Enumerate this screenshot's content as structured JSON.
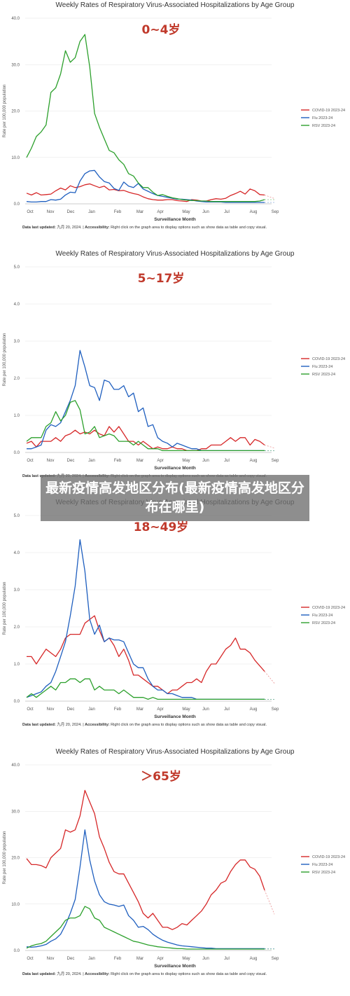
{
  "overlay_text": "最新疫情高发地区分布(最新疫情高发地区分布在哪里)",
  "colors": {
    "covid": "#d62728",
    "flu": "#1f5fbf",
    "rsv": "#2ca02c",
    "age": "#c0392b"
  },
  "footer": {
    "updated_label": "Data last updated:",
    "updated_value": "九月 20, 2024. |",
    "access_label": "Accessibility:",
    "access_text": "Right click on the graph area to display options such as show data as table and copy visual."
  },
  "chart_data": [
    {
      "type": "line",
      "title": "Weekly Rates of Respiratory Virus-Associated Hospitalizations by Age Group",
      "age_label": "0~4岁",
      "xlabel": "Surveillance Month",
      "ylabel": "Rate per 100,000 population",
      "ylim": [
        0,
        40
      ],
      "yticks": [
        "0.0",
        "10.0",
        "20.0",
        "30.0",
        "40.0"
      ],
      "xticks": [
        "Oct",
        "Nov",
        "Dec",
        "Jan",
        "Feb",
        "Mar",
        "Apr",
        "May",
        "Jun",
        "Jul",
        "Aug",
        "Sep"
      ],
      "series": [
        {
          "name": "COVID-19 2023-24",
          "values": [
            2.3,
            1.9,
            2.4,
            1.9,
            2.0,
            2.1,
            2.8,
            3.4,
            3.0,
            3.9,
            3.5,
            3.7,
            4.1,
            4.3,
            3.9,
            3.5,
            3.8,
            3.0,
            3.1,
            2.8,
            2.9,
            2.5,
            2.2,
            2.0,
            1.5,
            1.1,
            0.9,
            0.8,
            0.8,
            0.9,
            0.9,
            0.7,
            0.6,
            0.5,
            0.9,
            0.8,
            0.6,
            0.6,
            0.9,
            1.1,
            1.0,
            1.2,
            1.8,
            2.2,
            2.7,
            2.1,
            3.2,
            2.8,
            2.0,
            1.9
          ]
        },
        {
          "name": "Flu 2023-24",
          "values": [
            0.5,
            0.4,
            0.4,
            0.5,
            0.5,
            0.9,
            0.8,
            1.0,
            1.9,
            2.5,
            2.4,
            4.9,
            6.5,
            7.1,
            7.2,
            5.8,
            4.8,
            4.5,
            3.3,
            2.9,
            4.7,
            3.8,
            3.5,
            4.4,
            3.2,
            2.7,
            2.2,
            1.8,
            1.6,
            1.4,
            1.2,
            1.0,
            1.0,
            0.9,
            0.8,
            0.6,
            0.5,
            0.4,
            0.4,
            0.4,
            0.4,
            0.3,
            0.3,
            0.3,
            0.3,
            0.3,
            0.3,
            0.3,
            0.3,
            0.3
          ]
        },
        {
          "name": "RSV 2023-24",
          "values": [
            10.0,
            12.0,
            14.5,
            15.5,
            17.0,
            24.0,
            25.0,
            28.0,
            33.0,
            30.5,
            31.5,
            35.0,
            36.5,
            29.5,
            19.5,
            16.5,
            14.0,
            11.5,
            11.0,
            9.5,
            8.5,
            6.5,
            6.0,
            4.5,
            3.5,
            3.5,
            2.5,
            1.8,
            2.0,
            1.6,
            1.3,
            1.1,
            0.9,
            0.8,
            0.7,
            0.7,
            0.6,
            0.6,
            0.5,
            0.5,
            0.5,
            0.5,
            0.5,
            0.5,
            0.5,
            0.5,
            0.5,
            0.5,
            0.6,
            0.9
          ]
        }
      ]
    },
    {
      "type": "line",
      "title": "Weekly Rates of Respiratory Virus-Associated Hospitalizations by Age Group",
      "age_label": "5~17岁",
      "xlabel": "Surveillance Month",
      "ylabel": "Rate per 100,000 population",
      "ylim": [
        0,
        5
      ],
      "yticks": [
        "0.0",
        "1.0",
        "2.0",
        "3.0",
        "4.0",
        "5.0"
      ],
      "xticks": [
        "Oct",
        "Nov",
        "Dec",
        "Jan",
        "Feb",
        "Mar",
        "Apr",
        "May",
        "Jun",
        "Jul",
        "Aug",
        "Sep"
      ],
      "series": [
        {
          "name": "COVID-19 2023-24",
          "values": [
            0.25,
            0.3,
            0.15,
            0.3,
            0.3,
            0.3,
            0.4,
            0.3,
            0.45,
            0.5,
            0.6,
            0.5,
            0.55,
            0.5,
            0.6,
            0.5,
            0.45,
            0.7,
            0.55,
            0.7,
            0.5,
            0.3,
            0.3,
            0.2,
            0.3,
            0.2,
            0.1,
            0.15,
            0.1,
            0.1,
            0.15,
            0.1,
            0.1,
            0.05,
            0.05,
            0.05,
            0.1,
            0.1,
            0.2,
            0.2,
            0.2,
            0.3,
            0.4,
            0.3,
            0.4,
            0.4,
            0.2,
            0.35,
            0.3,
            0.2
          ]
        },
        {
          "name": "Flu 2023-24",
          "values": [
            0.1,
            0.1,
            0.15,
            0.2,
            0.6,
            0.75,
            0.7,
            0.8,
            1.1,
            1.4,
            1.8,
            2.75,
            2.3,
            1.8,
            1.75,
            1.4,
            1.95,
            1.9,
            1.7,
            1.7,
            1.8,
            1.5,
            1.6,
            1.1,
            1.2,
            0.7,
            0.75,
            0.4,
            0.3,
            0.25,
            0.15,
            0.25,
            0.2,
            0.15,
            0.1,
            0.1,
            0.05,
            0.05,
            0.05,
            0.05,
            0.05,
            0.05,
            0.05,
            0.05,
            0.05,
            0.05,
            0.05,
            0.05,
            0.05,
            0.05
          ]
        },
        {
          "name": "RSV 2023-24",
          "values": [
            0.3,
            0.4,
            0.4,
            0.4,
            0.7,
            0.8,
            1.1,
            0.85,
            1.0,
            1.35,
            1.4,
            1.15,
            0.5,
            0.55,
            0.7,
            0.4,
            0.45,
            0.5,
            0.45,
            0.3,
            0.3,
            0.3,
            0.2,
            0.3,
            0.2,
            0.1,
            0.1,
            0.1,
            0.05,
            0.05,
            0.05,
            0.05,
            0.05,
            0.05,
            0.05,
            0.05,
            0.05,
            0.05,
            0.05,
            0.05,
            0.05,
            0.05,
            0.05,
            0.05,
            0.05,
            0.05,
            0.05,
            0.05,
            0.05,
            0.05
          ]
        }
      ]
    },
    {
      "type": "line",
      "title": "Weekly Rates of Respiratory Virus-Associated Hospitalizations by Age Group",
      "age_label": "18~49岁",
      "xlabel": "Surveillance Month",
      "ylabel": "Rate per 100,000 population",
      "ylim": [
        0,
        5
      ],
      "yticks": [
        "0.0",
        "1.0",
        "2.0",
        "3.0",
        "4.0",
        "5.0"
      ],
      "xticks": [
        "Oct",
        "Nov",
        "Dec",
        "Jan",
        "Feb",
        "Mar",
        "Apr",
        "May",
        "Jun",
        "Jul",
        "Aug",
        "Sep"
      ],
      "series": [
        {
          "name": "COVID-19 2023-24",
          "values": [
            1.2,
            1.2,
            1.0,
            1.2,
            1.4,
            1.3,
            1.2,
            1.4,
            1.7,
            1.8,
            1.8,
            1.8,
            2.1,
            2.2,
            2.3,
            1.9,
            1.6,
            1.7,
            1.5,
            1.2,
            1.4,
            1.1,
            0.7,
            0.7,
            0.6,
            0.5,
            0.4,
            0.4,
            0.3,
            0.2,
            0.3,
            0.3,
            0.4,
            0.5,
            0.5,
            0.6,
            0.5,
            0.8,
            1.0,
            1.0,
            1.2,
            1.4,
            1.5,
            1.7,
            1.4,
            1.4,
            1.3,
            1.1,
            0.95,
            0.8
          ]
        },
        {
          "name": "Flu 2023-24",
          "values": [
            0.1,
            0.15,
            0.2,
            0.25,
            0.4,
            0.5,
            0.8,
            1.2,
            1.6,
            2.3,
            3.1,
            4.35,
            3.5,
            2.2,
            1.8,
            2.05,
            1.6,
            1.7,
            1.65,
            1.65,
            1.6,
            1.3,
            1.0,
            0.9,
            0.9,
            0.6,
            0.4,
            0.3,
            0.3,
            0.2,
            0.2,
            0.15,
            0.1,
            0.1,
            0.1,
            0.05,
            0.05,
            0.05,
            0.05,
            0.05,
            0.05,
            0.05,
            0.05,
            0.05,
            0.05,
            0.05,
            0.05,
            0.05,
            0.05,
            0.05
          ]
        },
        {
          "name": "RSV 2023-24",
          "values": [
            0.1,
            0.2,
            0.1,
            0.2,
            0.3,
            0.4,
            0.3,
            0.5,
            0.5,
            0.6,
            0.6,
            0.5,
            0.6,
            0.6,
            0.3,
            0.4,
            0.3,
            0.3,
            0.3,
            0.2,
            0.3,
            0.2,
            0.1,
            0.1,
            0.1,
            0.05,
            0.1,
            0.05,
            0.05,
            0.05,
            0.05,
            0.05,
            0.05,
            0.05,
            0.05,
            0.05,
            0.05,
            0.05,
            0.05,
            0.05,
            0.05,
            0.05,
            0.05,
            0.05,
            0.05,
            0.05,
            0.05,
            0.05,
            0.05,
            0.05
          ]
        }
      ]
    },
    {
      "type": "line",
      "title": "Weekly Rates of Respiratory Virus-Associated Hospitalizations by Age Group",
      "age_label": "＞65岁",
      "xlabel": "Surveillance Month",
      "ylabel": "Rate per 100,000 population",
      "ylim": [
        0,
        40
      ],
      "yticks": [
        "0.0",
        "10.0",
        "20.0",
        "30.0",
        "40.0"
      ],
      "xticks": [
        "Oct",
        "Nov",
        "Dec",
        "Jan",
        "Feb",
        "Mar",
        "Apr",
        "May",
        "Jun",
        "Jul",
        "Aug",
        "Sep"
      ],
      "series": [
        {
          "name": "COVID-19 2023-24",
          "values": [
            19.8,
            18.5,
            18.5,
            18.3,
            17.8,
            20.0,
            21.0,
            22.0,
            26.0,
            25.5,
            26.0,
            29.0,
            34.5,
            32.0,
            29.5,
            24.5,
            22.0,
            19.0,
            17.0,
            16.5,
            16.5,
            14.5,
            12.5,
            10.5,
            8.0,
            7.0,
            8.0,
            6.5,
            5.0,
            5.0,
            4.5,
            5.0,
            5.8,
            5.5,
            6.5,
            7.5,
            8.5,
            10.0,
            12.0,
            13.0,
            14.5,
            15.0,
            17.0,
            18.5,
            19.5,
            19.5,
            18.0,
            17.5,
            16.0,
            13.0
          ]
        },
        {
          "name": "Flu 2023-24",
          "values": [
            0.8,
            0.7,
            0.8,
            1.0,
            1.3,
            2.0,
            2.5,
            3.5,
            5.5,
            8.0,
            11.0,
            18.0,
            26.0,
            19.5,
            15.0,
            12.0,
            10.5,
            10.0,
            9.8,
            9.5,
            9.8,
            7.5,
            6.5,
            5.0,
            5.2,
            4.5,
            3.5,
            2.8,
            2.2,
            1.8,
            1.5,
            1.2,
            1.0,
            0.9,
            0.8,
            0.7,
            0.6,
            0.5,
            0.5,
            0.4,
            0.4,
            0.4,
            0.4,
            0.4,
            0.4,
            0.4,
            0.4,
            0.4,
            0.4,
            0.4
          ]
        },
        {
          "name": "RSV 2023-24",
          "values": [
            0.5,
            1.0,
            1.3,
            1.5,
            2.0,
            3.0,
            4.0,
            5.0,
            6.5,
            7.0,
            7.0,
            7.5,
            9.5,
            9.0,
            7.0,
            6.5,
            5.0,
            4.5,
            4.0,
            3.5,
            3.0,
            2.5,
            2.0,
            1.8,
            1.5,
            1.2,
            1.0,
            0.8,
            0.7,
            0.6,
            0.5,
            0.4,
            0.4,
            0.3,
            0.3,
            0.3,
            0.3,
            0.3,
            0.3,
            0.3,
            0.3,
            0.3,
            0.3,
            0.3,
            0.3,
            0.3,
            0.3,
            0.3,
            0.3,
            0.3
          ]
        }
      ]
    }
  ]
}
